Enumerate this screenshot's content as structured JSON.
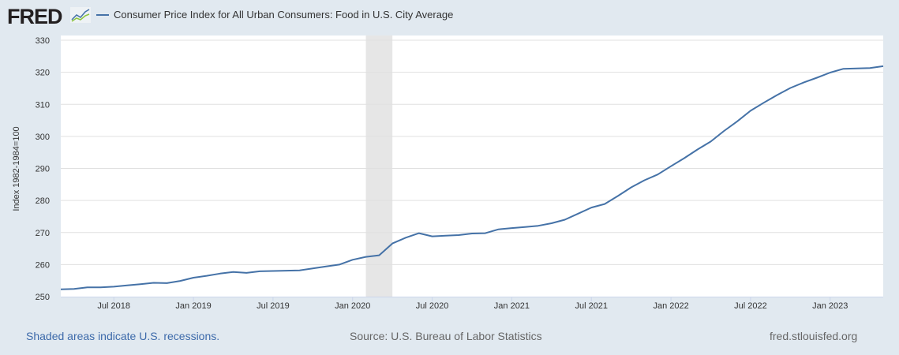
{
  "header": {
    "logo": "FRED",
    "legend_label": "Consumer Price Index for All Urban Consumers: Food in U.S. City Average"
  },
  "footer": {
    "recession_note": "Shaded areas indicate U.S. recessions.",
    "source": "Source: U.S. Bureau of Labor Statistics",
    "site": "fred.stlouisfed.org"
  },
  "colors": {
    "line": "#4572a7",
    "recession": "#e6e6e6",
    "background": "#e1e9f0",
    "link": "#3d6aaa"
  },
  "chart_data": {
    "type": "line",
    "title": "",
    "ylabel": "Index 1982-1984=100",
    "xlabel": "",
    "ylim": [
      250,
      330
    ],
    "yticks": [
      250,
      260,
      270,
      280,
      290,
      300,
      310,
      320,
      330
    ],
    "xticks": [
      {
        "date": "2018-07",
        "label": "Jul 2018"
      },
      {
        "date": "2019-01",
        "label": "Jan 2019"
      },
      {
        "date": "2019-07",
        "label": "Jul 2019"
      },
      {
        "date": "2020-01",
        "label": "Jan 2020"
      },
      {
        "date": "2020-07",
        "label": "Jul 2020"
      },
      {
        "date": "2021-01",
        "label": "Jan 2021"
      },
      {
        "date": "2021-07",
        "label": "Jul 2021"
      },
      {
        "date": "2022-01",
        "label": "Jan 2022"
      },
      {
        "date": "2022-07",
        "label": "Jul 2022"
      },
      {
        "date": "2023-01",
        "label": "Jan 2023"
      }
    ],
    "grid": true,
    "recessions": [
      {
        "start": "2020-02",
        "end": "2020-04"
      }
    ],
    "series": [
      {
        "name": "Consumer Price Index for All Urban Consumers: Food in U.S. City Average",
        "start": "2018-03",
        "frequency": "monthly",
        "values": [
          252.3,
          252.4,
          252.9,
          252.9,
          253.1,
          253.5,
          253.9,
          254.3,
          254.2,
          254.9,
          255.9,
          256.5,
          257.2,
          257.7,
          257.4,
          257.9,
          258.0,
          258.1,
          258.2,
          258.8,
          259.4,
          260.0,
          261.5,
          262.4,
          262.9,
          266.6,
          268.4,
          269.8,
          268.8,
          269.0,
          269.2,
          269.7,
          269.8,
          271.0,
          271.4,
          271.7,
          272.1,
          272.9,
          274.0,
          275.9,
          277.8,
          278.9,
          281.4,
          284.1,
          286.3,
          288.1,
          290.7,
          293.2,
          295.9,
          298.4,
          301.7,
          304.7,
          308.0,
          310.5,
          312.9,
          315.1,
          316.8,
          318.3,
          319.9,
          321.1,
          321.2,
          321.3,
          321.9
        ]
      }
    ]
  }
}
